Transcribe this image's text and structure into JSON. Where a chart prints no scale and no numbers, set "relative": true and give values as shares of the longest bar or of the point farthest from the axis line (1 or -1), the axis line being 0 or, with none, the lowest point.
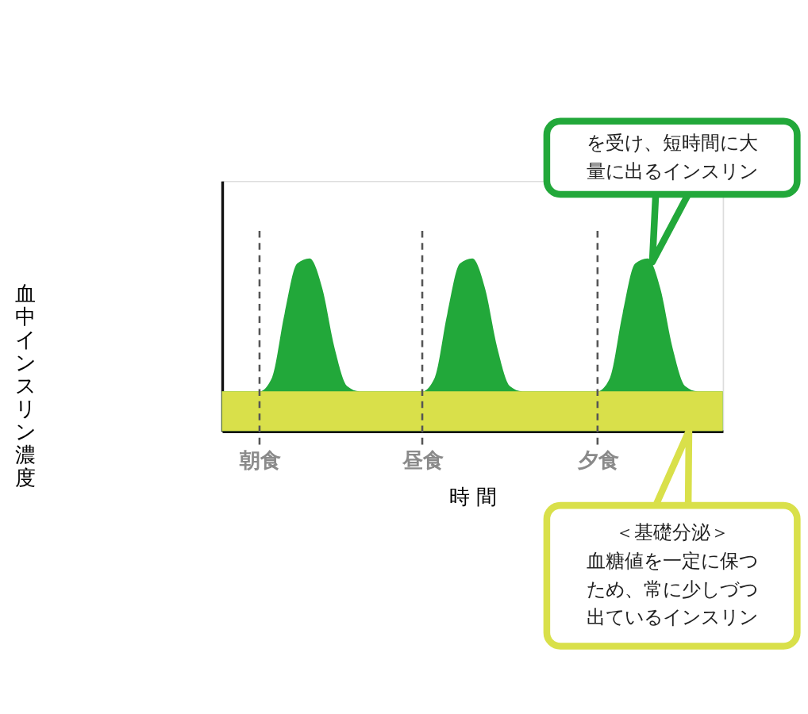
{
  "chart_data": {
    "type": "area",
    "relative": true,
    "xlabel": "時 間",
    "ylabel": "血中インスリン濃度",
    "categories": [
      null,
      null,
      null,
      "朝食",
      null,
      null,
      null,
      null,
      null,
      null,
      null,
      null,
      null,
      null,
      null,
      null,
      "昼食",
      null,
      null,
      null,
      null,
      null,
      null,
      null,
      null,
      null,
      null,
      null,
      null,
      null,
      "夕食",
      null,
      null,
      null,
      null,
      null,
      null,
      null,
      null,
      null,
      null
    ],
    "series": [
      {
        "color": "#22a83a",
        "values": [
          0.23,
          0.23,
          0.23,
          0.23,
          0.31,
          0.68,
          0.97,
          1,
          0.83,
          0.48,
          0.26,
          0.23,
          0.23,
          0.23,
          0.23,
          0.23,
          0.23,
          0.31,
          0.68,
          0.97,
          1,
          0.83,
          0.48,
          0.26,
          0.23,
          0.23,
          0.23,
          0.23,
          0.23,
          0.23,
          0.23,
          0.31,
          0.68,
          0.97,
          1,
          0.83,
          0.48,
          0.26,
          0.23,
          0.23,
          0.23
        ]
      }
    ],
    "bands": [
      {
        "axis": "y",
        "from": 0,
        "to": 0.23,
        "color": "#d9e04a"
      }
    ],
    "ref_lines": [
      {
        "axis": "x",
        "value": "朝食",
        "color": "#555555",
        "line_style": "dashed"
      },
      {
        "axis": "x",
        "value": "昼食",
        "color": "#555555",
        "line_style": "dashed"
      },
      {
        "axis": "x",
        "value": "夕食",
        "color": "#555555",
        "line_style": "dashed"
      }
    ],
    "annotations": [
      "を受け、短時間に大量に出るインスリン",
      "＜基礎分泌＞",
      "血糖値を一定に保つため、常に少しづつ出ているインスリン"
    ],
    "grid": false,
    "legend": false
  }
}
